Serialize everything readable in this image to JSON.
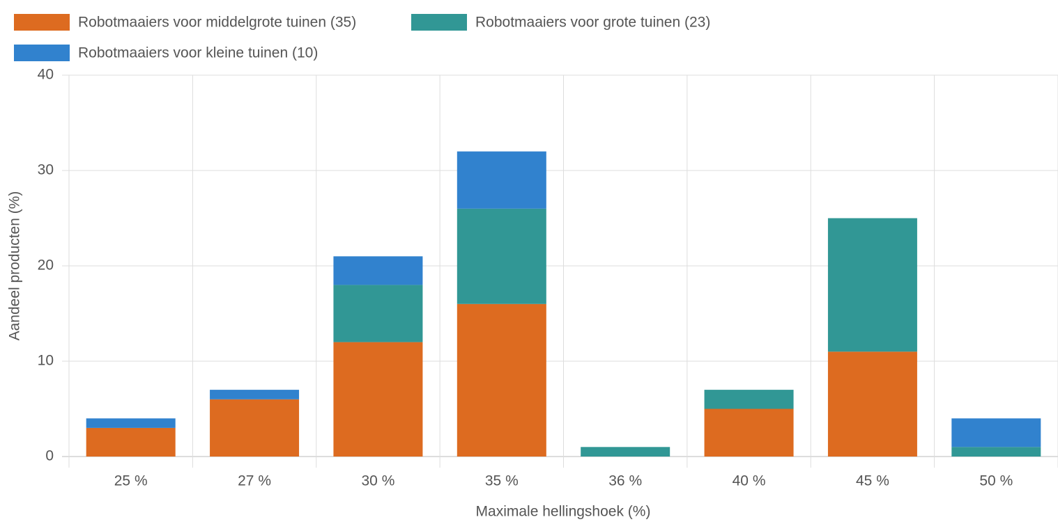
{
  "chart_data": {
    "type": "stacked_bar",
    "x_label": "Maximale hellingshoek (%)",
    "y_label": "Aandeel producten (%)",
    "categories": [
      "25 %",
      "27 %",
      "30 %",
      "35 %",
      "36 %",
      "40 %",
      "45 %",
      "50 %"
    ],
    "series": [
      {
        "name": "Robotmaaiers voor middelgrote tuinen (35)",
        "color": "#dd6b20",
        "values": [
          3,
          6,
          12,
          16,
          0,
          5,
          11,
          0
        ]
      },
      {
        "name": "Robotmaaiers voor grote tuinen (23)",
        "color": "#319795",
        "values": [
          0,
          0,
          6,
          10,
          1,
          2,
          14,
          1
        ]
      },
      {
        "name": "Robotmaaiers voor kleine tuinen (10)",
        "color": "#3182ce",
        "values": [
          1,
          1,
          3,
          6,
          0,
          0,
          0,
          3
        ]
      }
    ],
    "ylim": [
      0,
      40
    ],
    "yticks": [
      0,
      10,
      20,
      30,
      40
    ],
    "grid": true,
    "legend": "top"
  }
}
